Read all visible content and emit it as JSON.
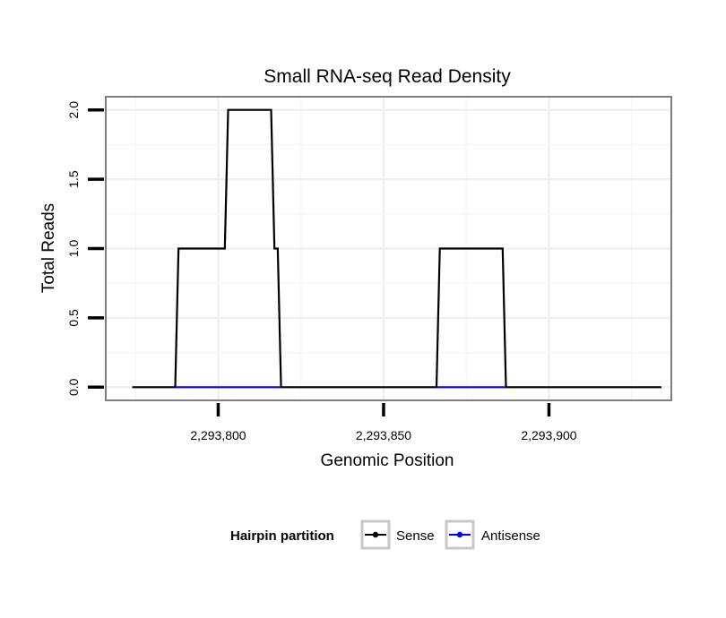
{
  "chart_data": {
    "type": "line",
    "title": "Small RNA-seq Read Density",
    "xlabel": "Genomic Position",
    "ylabel": "Total Reads",
    "xlim": [
      2293766,
      2293937
    ],
    "ylim": [
      -0.095,
      2.095
    ],
    "x_ticks": [
      {
        "value": 2293800,
        "label": "2,293,800"
      },
      {
        "value": 2293850,
        "label": "2,293,850"
      },
      {
        "value": 2293900,
        "label": "2,293,900"
      }
    ],
    "y_ticks": [
      {
        "value": 0.0,
        "label": "0.0"
      },
      {
        "value": 0.5,
        "label": "0.5"
      },
      {
        "value": 1.0,
        "label": "1.0"
      },
      {
        "value": 1.5,
        "label": "1.5"
      },
      {
        "value": 2.0,
        "label": "2.0"
      }
    ],
    "grid": true,
    "legend": {
      "title": "Hairpin partition",
      "position": "bottom",
      "entries": [
        {
          "name": "Sense",
          "color": "#000000"
        },
        {
          "name": "Antisense",
          "color": "#0000ff"
        }
      ]
    },
    "series": [
      {
        "name": "Sense",
        "color": "#000000",
        "x": [
          2293774,
          2293787,
          2293788,
          2293802,
          2293803,
          2293816,
          2293817,
          2293818,
          2293819,
          2293866,
          2293867,
          2293886,
          2293887,
          2293934
        ],
        "y": [
          0,
          0,
          1,
          1,
          2,
          2,
          1,
          1,
          0,
          0,
          1,
          1,
          0,
          0
        ]
      },
      {
        "name": "Antisense",
        "color": "#0000ff",
        "x": [
          2293787,
          2293819,
          2293866,
          2293887
        ],
        "y": [
          0,
          0,
          0,
          0
        ],
        "segments": [
          [
            0,
            1
          ],
          [
            2,
            3
          ]
        ]
      }
    ]
  }
}
